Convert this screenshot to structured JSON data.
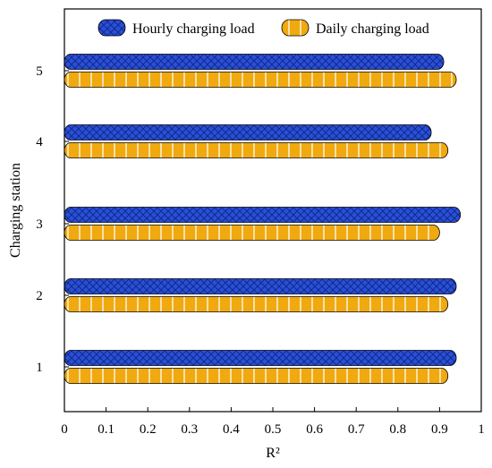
{
  "chart_data": {
    "type": "bar",
    "orientation": "horizontal",
    "categories": [
      "1",
      "2",
      "3",
      "4",
      "5"
    ],
    "series": [
      {
        "name": "Hourly charging load",
        "color": "#2a4fd8",
        "pattern": "crosshatch",
        "values": [
          0.94,
          0.94,
          0.95,
          0.88,
          0.91
        ]
      },
      {
        "name": "Daily charging load",
        "color": "#f0a90e",
        "pattern": "vertical-lines",
        "values": [
          0.92,
          0.92,
          0.9,
          0.92,
          0.94
        ]
      }
    ],
    "xlabel": "R²",
    "ylabel": "Charging station",
    "xlim": [
      0,
      1
    ],
    "xticks": [
      "0",
      "0.1",
      "0.2",
      "0.3",
      "0.4",
      "0.5",
      "0.6",
      "0.7",
      "0.8",
      "0.9",
      "1"
    ],
    "grid": false,
    "legend_position": "top"
  }
}
